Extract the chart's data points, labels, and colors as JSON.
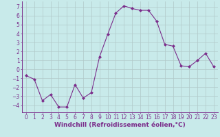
{
  "x": [
    0,
    1,
    2,
    3,
    4,
    5,
    6,
    7,
    8,
    9,
    10,
    11,
    12,
    13,
    14,
    15,
    16,
    17,
    18,
    19,
    20,
    21,
    22,
    23
  ],
  "y": [
    -0.7,
    -1.1,
    -3.5,
    -2.8,
    -4.2,
    -4.2,
    -1.7,
    -3.2,
    -2.6,
    1.4,
    3.9,
    6.3,
    7.1,
    6.8,
    6.6,
    6.6,
    5.4,
    2.8,
    2.6,
    0.4,
    0.3,
    1.0,
    1.8,
    0.3
  ],
  "line_color": "#7b2d8b",
  "marker_color": "#7b2d8b",
  "bg_color": "#c8eaea",
  "grid_color": "#b0c8c8",
  "axis_color": "#7b2d8b",
  "xlabel": "Windchill (Refroidissement éolien,°C)",
  "ylim": [
    -4.8,
    7.6
  ],
  "xlim": [
    -0.5,
    23.5
  ],
  "yticks": [
    -4,
    -3,
    -2,
    -1,
    0,
    1,
    2,
    3,
    4,
    5,
    6,
    7
  ],
  "xticks": [
    0,
    1,
    2,
    3,
    4,
    5,
    6,
    7,
    8,
    9,
    10,
    11,
    12,
    13,
    14,
    15,
    16,
    17,
    18,
    19,
    20,
    21,
    22,
    23
  ],
  "tick_fontsize": 5.5,
  "label_fontsize": 6.5
}
